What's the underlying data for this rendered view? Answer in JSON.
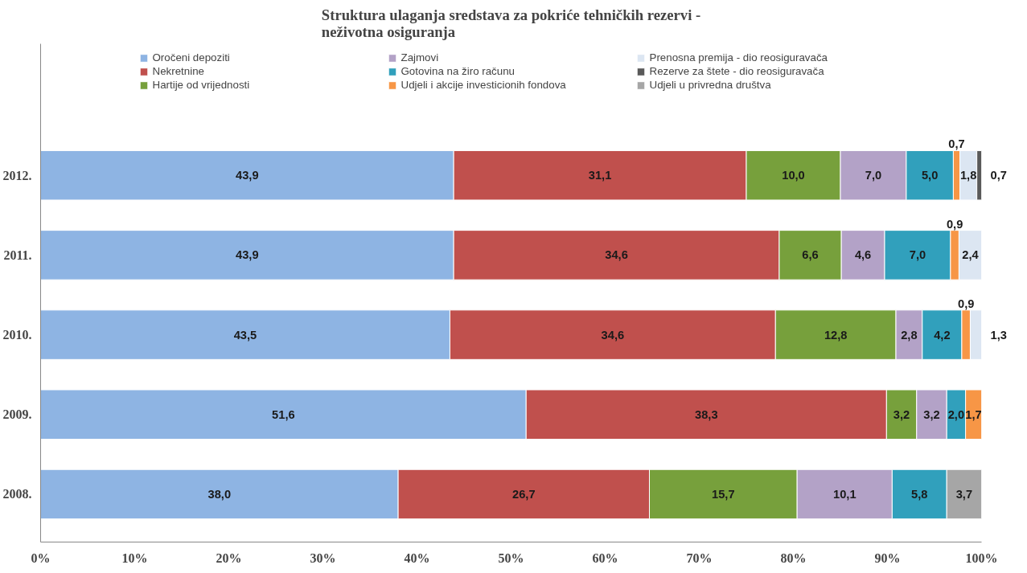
{
  "chart_data": {
    "type": "bar",
    "orientation": "horizontal",
    "stacked": true,
    "title": "Struktura ulaganja sredstava za pokriće tehničkih rezervi -\nneživotna osiguranja",
    "categories": [
      "2012.",
      "2011.",
      "2010.",
      "2009.",
      "2008."
    ],
    "xlim": [
      0,
      100
    ],
    "xticks": [
      {
        "value": 0,
        "label": "0%"
      },
      {
        "value": 10,
        "label": "10%"
      },
      {
        "value": 20,
        "label": "20%"
      },
      {
        "value": 30,
        "label": "30%"
      },
      {
        "value": 40,
        "label": "40%"
      },
      {
        "value": 50,
        "label": "50%"
      },
      {
        "value": 60,
        "label": "60%"
      },
      {
        "value": 70,
        "label": "70%"
      },
      {
        "value": 80,
        "label": "80%"
      },
      {
        "value": 90,
        "label": "90%"
      },
      {
        "value": 100,
        "label": "100%"
      }
    ],
    "legend": "top",
    "grid": false,
    "series": [
      {
        "name": "Oročeni depoziti",
        "color": "#8eb4e3",
        "values": [
          43.9,
          43.9,
          43.5,
          51.6,
          38.0
        ],
        "value_labels": [
          "43,9",
          "43,9",
          "43,5",
          "51,6",
          "38,0"
        ]
      },
      {
        "name": "Nekretnine",
        "color": "#c0504d",
        "values": [
          31.1,
          34.6,
          34.6,
          38.3,
          26.7
        ],
        "value_labels": [
          "31,1",
          "34,6",
          "34,6",
          "38,3",
          "26,7"
        ]
      },
      {
        "name": "Hartije od vrijednosti",
        "color": "#77a03c",
        "values": [
          10.0,
          6.6,
          12.8,
          3.2,
          15.7
        ],
        "value_labels": [
          "10,0",
          "6,6",
          "12,8",
          "3,2",
          "15,7"
        ]
      },
      {
        "name": "Zajmovi",
        "color": "#b3a2c7",
        "values": [
          7.0,
          4.6,
          2.8,
          3.2,
          10.1
        ],
        "value_labels": [
          "7,0",
          "4,6",
          "2,8",
          "3,2",
          "10,1"
        ]
      },
      {
        "name": "Gotovina na žiro računu",
        "color": "#31a0bc",
        "values": [
          5.0,
          7.0,
          4.2,
          2.0,
          5.8
        ],
        "value_labels": [
          "5,0",
          "7,0",
          "4,2",
          "2,0",
          "5,8"
        ]
      },
      {
        "name": "Udjeli i akcije investicionih fondova",
        "color": "#f79646",
        "values": [
          0.7,
          0.9,
          0.9,
          1.7,
          null
        ],
        "value_labels": [
          "0,7",
          "0,9",
          "0,9",
          "1,7",
          null
        ]
      },
      {
        "name": "Prenosna premija - dio reosiguravača",
        "color": "#dce6f2",
        "values": [
          1.8,
          2.4,
          1.3,
          null,
          null
        ],
        "value_labels": [
          "1,8",
          "2,4",
          "1,3",
          null,
          null
        ]
      },
      {
        "name": "Rezerve za štete - dio reosiguravača",
        "color": "#595959",
        "values": [
          0.7,
          null,
          null,
          null,
          null
        ],
        "value_labels": [
          "0,7",
          null,
          null,
          null,
          null
        ]
      },
      {
        "name": "Udjeli u privredna društva",
        "color": "#a6a6a6",
        "values": [
          null,
          null,
          null,
          null,
          3.7
        ],
        "value_labels": [
          null,
          null,
          null,
          null,
          "3,7"
        ]
      }
    ]
  }
}
